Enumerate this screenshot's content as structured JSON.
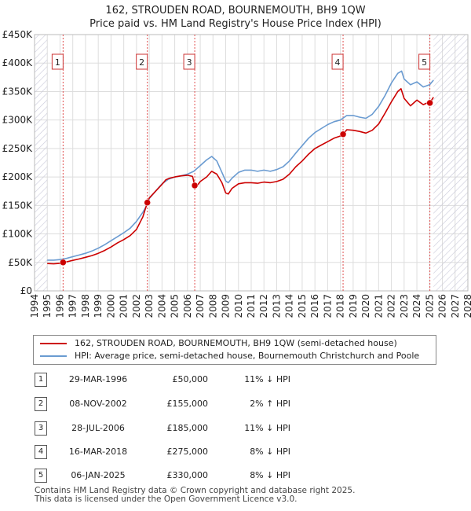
{
  "title_line1": "162, STROUDEN ROAD, BOURNEMOUTH, BH9 1QW",
  "title_line2": "Price paid vs. HM Land Registry's House Price Index (HPI)",
  "colors": {
    "price": "#cc0000",
    "hpi": "#6a9bd1",
    "grid": "#dddddd",
    "marker": "#cc0000",
    "vline": "#e05050",
    "hatch": "#c8c8d8"
  },
  "chart_data": {
    "type": "line",
    "title": "Price paid vs. HM Land Registry's House Price Index (HPI)",
    "xlabel": "",
    "ylabel": "",
    "xlim": [
      1994,
      2028
    ],
    "ylim": [
      0,
      450000
    ],
    "x_ticks": [
      "1994",
      "1995",
      "1996",
      "1997",
      "1998",
      "1999",
      "2000",
      "2001",
      "2002",
      "2003",
      "2004",
      "2005",
      "2006",
      "2007",
      "2008",
      "2009",
      "2010",
      "2011",
      "2012",
      "2013",
      "2014",
      "2015",
      "2016",
      "2017",
      "2018",
      "2019",
      "2020",
      "2021",
      "2022",
      "2023",
      "2024",
      "2025",
      "2026",
      "2027",
      "2028"
    ],
    "y_ticks": [
      {
        "value": 0,
        "label": "£0"
      },
      {
        "value": 50000,
        "label": "£50K"
      },
      {
        "value": 100000,
        "label": "£100K"
      },
      {
        "value": 150000,
        "label": "£150K"
      },
      {
        "value": 200000,
        "label": "£200K"
      },
      {
        "value": 250000,
        "label": "£250K"
      },
      {
        "value": 300000,
        "label": "£300K"
      },
      {
        "value": 350000,
        "label": "£350K"
      },
      {
        "value": 400000,
        "label": "£400K"
      },
      {
        "value": 450000,
        "label": "£450K"
      }
    ],
    "hatch_before": 1995.0,
    "hatch_after": 2025.3,
    "series": [
      {
        "name": "162, STROUDEN ROAD, BOURNEMOUTH, BH9 1QW (semi-detached house)",
        "color": "#cc0000",
        "x": [
          1995.0,
          1995.5,
          1996.0,
          1996.24,
          1996.5,
          1997.0,
          1997.5,
          1998.0,
          1998.5,
          1999.0,
          1999.5,
          2000.0,
          2000.5,
          2001.0,
          2001.5,
          2002.0,
          2002.5,
          2002.85,
          2003.0,
          2003.5,
          2004.0,
          2004.3,
          2004.6,
          2005.0,
          2005.5,
          2006.0,
          2006.4,
          2006.57,
          2006.7,
          2007.0,
          2007.5,
          2007.9,
          2008.3,
          2008.7,
          2009.0,
          2009.2,
          2009.5,
          2010.0,
          2010.5,
          2011.0,
          2011.5,
          2012.0,
          2012.5,
          2013.0,
          2013.5,
          2014.0,
          2014.5,
          2015.0,
          2015.5,
          2016.0,
          2016.5,
          2017.0,
          2017.5,
          2018.0,
          2018.21,
          2018.5,
          2019.0,
          2019.5,
          2020.0,
          2020.5,
          2021.0,
          2021.5,
          2022.0,
          2022.5,
          2022.75,
          2023.0,
          2023.5,
          2024.0,
          2024.5,
          2025.0,
          2025.02,
          2025.3
        ],
        "values": [
          48000,
          47500,
          48500,
          50000,
          51000,
          53500,
          56000,
          59000,
          62000,
          66000,
          71000,
          77000,
          84000,
          90000,
          97000,
          108000,
          130000,
          155000,
          163000,
          175000,
          187000,
          195000,
          198000,
          200000,
          202000,
          203000,
          201000,
          185000,
          183000,
          192000,
          200000,
          210000,
          205000,
          190000,
          172000,
          170000,
          180000,
          188000,
          190000,
          190000,
          189000,
          191000,
          190000,
          192000,
          196000,
          205000,
          218000,
          228000,
          240000,
          250000,
          256000,
          262000,
          268000,
          272000,
          275000,
          283000,
          282000,
          280000,
          277000,
          282000,
          293000,
          312000,
          332000,
          350000,
          355000,
          338000,
          325000,
          335000,
          327000,
          332000,
          330000,
          340000
        ]
      },
      {
        "name": "HPI: Average price, semi-detached house, Bournemouth Christchurch and Poole",
        "color": "#6a9bd1",
        "x": [
          1995.0,
          1995.5,
          1996.0,
          1996.5,
          1997.0,
          1997.5,
          1998.0,
          1998.5,
          1999.0,
          1999.5,
          2000.0,
          2000.5,
          2001.0,
          2001.5,
          2002.0,
          2002.5,
          2002.85,
          2003.0,
          2003.5,
          2004.0,
          2004.5,
          2005.0,
          2005.5,
          2006.0,
          2006.5,
          2007.0,
          2007.5,
          2007.9,
          2008.3,
          2008.7,
          2009.0,
          2009.2,
          2009.5,
          2010.0,
          2010.5,
          2011.0,
          2011.5,
          2012.0,
          2012.5,
          2013.0,
          2013.5,
          2014.0,
          2014.5,
          2015.0,
          2015.5,
          2016.0,
          2016.5,
          2017.0,
          2017.5,
          2018.0,
          2018.5,
          2019.0,
          2019.5,
          2020.0,
          2020.5,
          2021.0,
          2021.5,
          2022.0,
          2022.5,
          2022.8,
          2023.0,
          2023.5,
          2024.0,
          2024.5,
          2025.0,
          2025.3
        ],
        "values": [
          54000,
          54000,
          55000,
          57000,
          60000,
          63000,
          66000,
          70000,
          75000,
          81000,
          88000,
          95000,
          102000,
          110000,
          122000,
          138000,
          152000,
          162000,
          175000,
          188000,
          196000,
          200000,
          202000,
          205000,
          210000,
          220000,
          230000,
          236000,
          228000,
          208000,
          193000,
          190000,
          198000,
          208000,
          212000,
          212000,
          210000,
          212000,
          210000,
          213000,
          218000,
          228000,
          242000,
          255000,
          268000,
          278000,
          285000,
          292000,
          297000,
          300000,
          308000,
          308000,
          305000,
          303000,
          310000,
          324000,
          343000,
          365000,
          382000,
          386000,
          372000,
          362000,
          367000,
          358000,
          362000,
          370000
        ]
      }
    ],
    "annotations": [
      {
        "label": "1",
        "x": 1996.24,
        "y": 50000
      },
      {
        "label": "2",
        "x": 2002.85,
        "y": 155000
      },
      {
        "label": "3",
        "x": 2006.57,
        "y": 185000
      },
      {
        "label": "4",
        "x": 2018.21,
        "y": 275000
      },
      {
        "label": "5",
        "x": 2025.02,
        "y": 330000
      }
    ]
  },
  "legend": {
    "items": [
      {
        "label": "162, STROUDEN ROAD, BOURNEMOUTH, BH9 1QW (semi-detached house)",
        "color": "#cc0000"
      },
      {
        "label": "HPI: Average price, semi-detached house, Bournemouth Christchurch and Poole",
        "color": "#6a9bd1"
      }
    ]
  },
  "sales": [
    {
      "num": "1",
      "date": "29-MAR-1996",
      "price": "£50,000",
      "hpi": "11% ↓ HPI"
    },
    {
      "num": "2",
      "date": "08-NOV-2002",
      "price": "£155,000",
      "hpi": "2% ↑ HPI"
    },
    {
      "num": "3",
      "date": "28-JUL-2006",
      "price": "£185,000",
      "hpi": "11% ↓ HPI"
    },
    {
      "num": "4",
      "date": "16-MAR-2018",
      "price": "£275,000",
      "hpi": "8% ↓ HPI"
    },
    {
      "num": "5",
      "date": "06-JAN-2025",
      "price": "£330,000",
      "hpi": "8% ↓ HPI"
    }
  ],
  "footer_line1": "Contains HM Land Registry data © Crown copyright and database right 2025.",
  "footer_line2": "This data is licensed under the Open Government Licence v3.0."
}
